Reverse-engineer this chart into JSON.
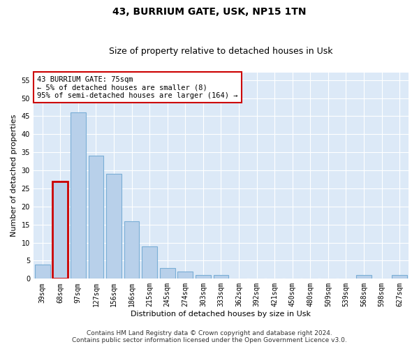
{
  "title": "43, BURRIUM GATE, USK, NP15 1TN",
  "subtitle": "Size of property relative to detached houses in Usk",
  "xlabel": "Distribution of detached houses by size in Usk",
  "ylabel": "Number of detached properties",
  "categories": [
    "39sqm",
    "68sqm",
    "97sqm",
    "127sqm",
    "156sqm",
    "186sqm",
    "215sqm",
    "245sqm",
    "274sqm",
    "303sqm",
    "333sqm",
    "362sqm",
    "392sqm",
    "421sqm",
    "450sqm",
    "480sqm",
    "509sqm",
    "539sqm",
    "568sqm",
    "598sqm",
    "627sqm"
  ],
  "values": [
    4,
    27,
    46,
    34,
    29,
    16,
    9,
    3,
    2,
    1,
    1,
    0,
    0,
    0,
    0,
    0,
    0,
    0,
    1,
    0,
    1
  ],
  "bar_color": "#b8d0ea",
  "bar_edge_color": "#7aaed6",
  "highlight_bar_index": 1,
  "highlight_edge_color": "#cc0000",
  "annotation_box_text": "43 BURRIUM GATE: 75sqm\n← 5% of detached houses are smaller (8)\n95% of semi-detached houses are larger (164) →",
  "ylim": [
    0,
    57
  ],
  "yticks": [
    0,
    5,
    10,
    15,
    20,
    25,
    30,
    35,
    40,
    45,
    50,
    55
  ],
  "background_color": "#dce9f7",
  "grid_color": "#ffffff",
  "footer_line1": "Contains HM Land Registry data © Crown copyright and database right 2024.",
  "footer_line2": "Contains public sector information licensed under the Open Government Licence v3.0.",
  "title_fontsize": 10,
  "subtitle_fontsize": 9,
  "xlabel_fontsize": 8,
  "ylabel_fontsize": 8,
  "tick_fontsize": 7,
  "annotation_fontsize": 7.5,
  "footer_fontsize": 6.5
}
